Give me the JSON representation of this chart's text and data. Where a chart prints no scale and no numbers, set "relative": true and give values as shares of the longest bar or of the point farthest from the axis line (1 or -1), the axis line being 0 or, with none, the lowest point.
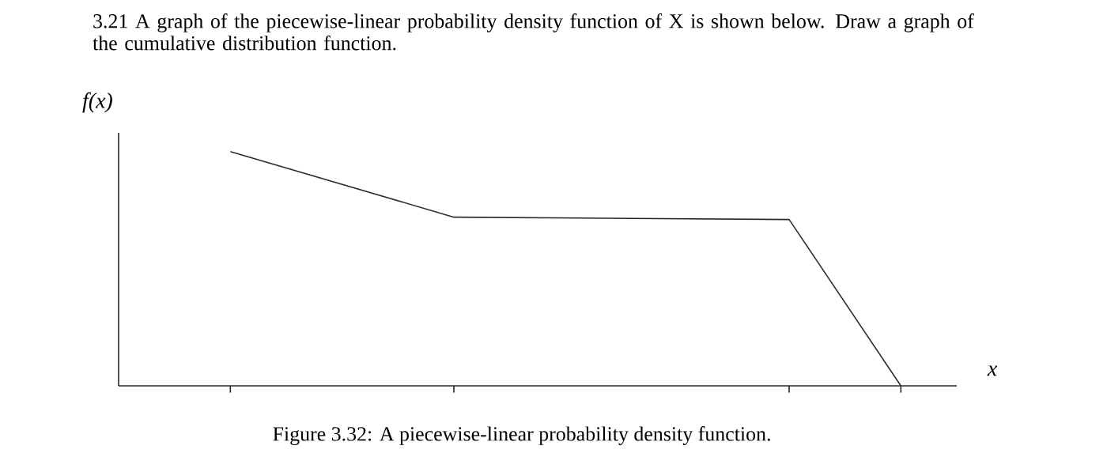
{
  "chart_data": {
    "type": "line",
    "title": "3.21  A graph of the piecewise-linear probability density function of X is shown below. Draw a graph of the cumulative distribution function.",
    "xlabel": "x",
    "ylabel": "f(x)",
    "relative": true,
    "categories": [
      null,
      null,
      null,
      null,
      null,
      null,
      null,
      null
    ],
    "values": [
      null,
      1,
      null,
      0.72,
      null,
      null,
      0.71,
      0
    ],
    "color": "#2b2b2b",
    "grid": false,
    "annotations": [
      "Figure 3.32: A piecewise-linear probability density function."
    ]
  }
}
